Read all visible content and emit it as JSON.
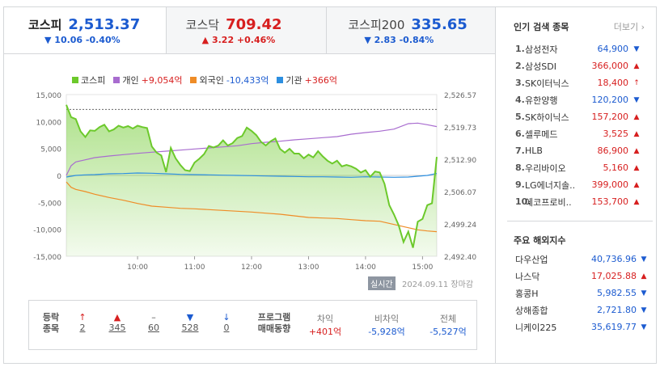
{
  "tabs": [
    {
      "name": "코스피",
      "value": "2,513.37",
      "change": "▼ 10.06 -0.40%",
      "dir": "down"
    },
    {
      "name": "코스닥",
      "value": "709.42",
      "change": "▲ 3.22 +0.46%",
      "dir": "up"
    },
    {
      "name": "코스피200",
      "value": "335.65",
      "change": "▼ 2.83 -0.84%",
      "dir": "down"
    }
  ],
  "legend": [
    {
      "name": "코스피",
      "value": "",
      "color": "#6cc92b"
    },
    {
      "name": "개인",
      "value": "+9,054억",
      "color": "#a86ccf",
      "dir": "up"
    },
    {
      "name": "외국인",
      "value": "-10,433억",
      "color": "#ef8c27",
      "dir": "down"
    },
    {
      "name": "기관",
      "value": "+366억",
      "color": "#2d8fe0",
      "dir": "up"
    }
  ],
  "chart_data": {
    "type": "line",
    "x_ticks": [
      "10:00",
      "11:00",
      "12:00",
      "13:00",
      "14:00",
      "15:00"
    ],
    "left_ticks": [
      "15,000",
      "10,000",
      "5,000",
      "0",
      "-5,000",
      "-10,000",
      "-15,000"
    ],
    "right_ticks": [
      "2,526.57",
      "2,519.73",
      "2,512.90",
      "2,506.07",
      "2,499.24",
      "2,492.40"
    ],
    "left_range": [
      -15000,
      15000
    ],
    "right_range": [
      2492.4,
      2526.57
    ],
    "x_range": [
      0,
      390
    ],
    "prev_close": 2523.43,
    "series": [
      {
        "name": "코스피",
        "axis": "right",
        "color": "#6cc92b",
        "points": [
          [
            0,
            2524.4
          ],
          [
            5,
            2521.8
          ],
          [
            10,
            2521.4
          ],
          [
            15,
            2518.8
          ],
          [
            20,
            2517.6
          ],
          [
            25,
            2519.0
          ],
          [
            30,
            2518.9
          ],
          [
            35,
            2519.7
          ],
          [
            40,
            2520.2
          ],
          [
            45,
            2518.8
          ],
          [
            50,
            2519.2
          ],
          [
            55,
            2520.0
          ],
          [
            60,
            2519.6
          ],
          [
            65,
            2519.9
          ],
          [
            70,
            2519.4
          ],
          [
            75,
            2520.0
          ],
          [
            80,
            2519.7
          ],
          [
            85,
            2519.5
          ],
          [
            90,
            2515.6
          ],
          [
            95,
            2514.3
          ],
          [
            100,
            2513.7
          ],
          [
            105,
            2510.2
          ],
          [
            110,
            2515.3
          ],
          [
            115,
            2513.1
          ],
          [
            120,
            2511.7
          ],
          [
            125,
            2510.6
          ],
          [
            130,
            2510.4
          ],
          [
            135,
            2512.2
          ],
          [
            140,
            2513.0
          ],
          [
            145,
            2514.0
          ],
          [
            150,
            2515.7
          ],
          [
            155,
            2515.4
          ],
          [
            160,
            2515.8
          ],
          [
            165,
            2516.9
          ],
          [
            170,
            2515.8
          ],
          [
            175,
            2516.3
          ],
          [
            180,
            2517.4
          ],
          [
            185,
            2517.8
          ],
          [
            190,
            2519.6
          ],
          [
            195,
            2518.9
          ],
          [
            200,
            2518.0
          ],
          [
            205,
            2516.6
          ],
          [
            210,
            2515.8
          ],
          [
            215,
            2516.7
          ],
          [
            220,
            2517.3
          ],
          [
            225,
            2515.1
          ],
          [
            230,
            2514.3
          ],
          [
            235,
            2515.1
          ],
          [
            240,
            2514.1
          ],
          [
            245,
            2514.1
          ],
          [
            250,
            2513.1
          ],
          [
            255,
            2513.9
          ],
          [
            260,
            2513.3
          ],
          [
            265,
            2514.6
          ],
          [
            270,
            2513.5
          ],
          [
            275,
            2512.6
          ],
          [
            280,
            2512.0
          ],
          [
            285,
            2512.6
          ],
          [
            290,
            2511.4
          ],
          [
            295,
            2511.7
          ],
          [
            300,
            2511.4
          ],
          [
            305,
            2510.9
          ],
          [
            310,
            2510.1
          ],
          [
            315,
            2510.6
          ],
          [
            320,
            2509.2
          ],
          [
            325,
            2510.3
          ],
          [
            330,
            2510.1
          ],
          [
            335,
            2507.7
          ],
          [
            340,
            2503.2
          ],
          [
            345,
            2501.2
          ],
          [
            350,
            2498.9
          ],
          [
            355,
            2495.4
          ],
          [
            360,
            2497.6
          ],
          [
            365,
            2494.2
          ],
          [
            370,
            2499.7
          ],
          [
            375,
            2500.3
          ],
          [
            380,
            2503.2
          ],
          [
            385,
            2503.6
          ],
          [
            390,
            2513.4
          ]
        ]
      },
      {
        "name": "개인",
        "axis": "left",
        "color": "#a86ccf",
        "points": [
          [
            0,
            0
          ],
          [
            5,
            1800
          ],
          [
            10,
            2500
          ],
          [
            20,
            2900
          ],
          [
            30,
            3300
          ],
          [
            45,
            3600
          ],
          [
            60,
            3850
          ],
          [
            75,
            4100
          ],
          [
            90,
            4300
          ],
          [
            105,
            4500
          ],
          [
            120,
            4700
          ],
          [
            135,
            4900
          ],
          [
            150,
            5100
          ],
          [
            165,
            5300
          ],
          [
            180,
            5500
          ],
          [
            195,
            5900
          ],
          [
            210,
            6150
          ],
          [
            225,
            6350
          ],
          [
            240,
            6600
          ],
          [
            255,
            6800
          ],
          [
            270,
            7000
          ],
          [
            285,
            7200
          ],
          [
            300,
            7650
          ],
          [
            315,
            7950
          ],
          [
            330,
            8200
          ],
          [
            345,
            8600
          ],
          [
            360,
            9600
          ],
          [
            370,
            9700
          ],
          [
            380,
            9400
          ],
          [
            390,
            9054
          ]
        ]
      },
      {
        "name": "외국인",
        "axis": "left",
        "color": "#ef8c27",
        "points": [
          [
            0,
            -1200
          ],
          [
            5,
            -2200
          ],
          [
            10,
            -2600
          ],
          [
            20,
            -3000
          ],
          [
            30,
            -3500
          ],
          [
            45,
            -4100
          ],
          [
            60,
            -4600
          ],
          [
            75,
            -5200
          ],
          [
            90,
            -5700
          ],
          [
            105,
            -5900
          ],
          [
            120,
            -6100
          ],
          [
            135,
            -6200
          ],
          [
            150,
            -6350
          ],
          [
            165,
            -6500
          ],
          [
            180,
            -6650
          ],
          [
            195,
            -6800
          ],
          [
            210,
            -7000
          ],
          [
            225,
            -7200
          ],
          [
            240,
            -7500
          ],
          [
            255,
            -7800
          ],
          [
            270,
            -7900
          ],
          [
            285,
            -8000
          ],
          [
            300,
            -8200
          ],
          [
            315,
            -8400
          ],
          [
            330,
            -8500
          ],
          [
            345,
            -9100
          ],
          [
            360,
            -9700
          ],
          [
            370,
            -10100
          ],
          [
            380,
            -10300
          ],
          [
            390,
            -10433
          ]
        ]
      },
      {
        "name": "기관",
        "axis": "left",
        "color": "#2d8fe0",
        "points": [
          [
            0,
            -300
          ],
          [
            10,
            0
          ],
          [
            20,
            100
          ],
          [
            30,
            150
          ],
          [
            45,
            300
          ],
          [
            60,
            350
          ],
          [
            75,
            450
          ],
          [
            90,
            400
          ],
          [
            105,
            300
          ],
          [
            120,
            200
          ],
          [
            135,
            150
          ],
          [
            150,
            100
          ],
          [
            165,
            50
          ],
          [
            180,
            0
          ],
          [
            195,
            -50
          ],
          [
            210,
            -100
          ],
          [
            225,
            -150
          ],
          [
            240,
            -200
          ],
          [
            255,
            -250
          ],
          [
            270,
            -250
          ],
          [
            285,
            -300
          ],
          [
            300,
            -350
          ],
          [
            315,
            -250
          ],
          [
            330,
            -300
          ],
          [
            345,
            -350
          ],
          [
            360,
            -300
          ],
          [
            370,
            -150
          ],
          [
            380,
            0
          ],
          [
            390,
            366
          ]
        ]
      }
    ]
  },
  "footer": {
    "realtime": "실시간",
    "timestamp": "2024.09.11 장마감"
  },
  "breadth": {
    "title1": "등락",
    "title2": "종목",
    "items": [
      {
        "icon": "↑",
        "value": "2",
        "dir": "up"
      },
      {
        "icon": "▲",
        "value": "345",
        "dir": "up"
      },
      {
        "icon": "–",
        "value": "60",
        "dir": "flat"
      },
      {
        "icon": "▼",
        "value": "528",
        "dir": "down"
      },
      {
        "icon": "↓",
        "value": "0",
        "dir": "down"
      }
    ]
  },
  "program": {
    "title1": "프로그램",
    "title2": "매매동향",
    "items": [
      {
        "label": "차익",
        "value": "+401억",
        "dir": "up"
      },
      {
        "label": "비차익",
        "value": "-5,928억",
        "dir": "down"
      },
      {
        "label": "전체",
        "value": "-5,527억",
        "dir": "down"
      }
    ]
  },
  "popular": {
    "title": "인기 검색 종목",
    "more": "더보기",
    "items": [
      {
        "rank": "1.",
        "name": "삼성전자",
        "price": "64,900",
        "arrow": "▼",
        "dir": "down"
      },
      {
        "rank": "2.",
        "name": "삼성SDI",
        "price": "366,000",
        "arrow": "▲",
        "dir": "up"
      },
      {
        "rank": "3.",
        "name": "SK이터닉스",
        "price": "18,400",
        "arrow": "↑",
        "dir": "up"
      },
      {
        "rank": "4.",
        "name": "유한양행",
        "price": "120,200",
        "arrow": "▼",
        "dir": "down"
      },
      {
        "rank": "5.",
        "name": "SK하이닉스",
        "price": "157,200",
        "arrow": "▲",
        "dir": "up"
      },
      {
        "rank": "6.",
        "name": "셀루메드",
        "price": "3,525",
        "arrow": "▲",
        "dir": "up"
      },
      {
        "rank": "7.",
        "name": "HLB",
        "price": "86,900",
        "arrow": "▲",
        "dir": "up"
      },
      {
        "rank": "8.",
        "name": "우리바이오",
        "price": "5,160",
        "arrow": "▲",
        "dir": "up"
      },
      {
        "rank": "9.",
        "name": "LG에너지솔..",
        "price": "399,000",
        "arrow": "▲",
        "dir": "up"
      },
      {
        "rank": "10.",
        "name": "에코프로비..",
        "price": "153,700",
        "arrow": "▲",
        "dir": "up"
      }
    ]
  },
  "international": {
    "title": "주요 해외지수",
    "items": [
      {
        "name": "다우산업",
        "value": "40,736.96",
        "arrow": "▼",
        "dir": "down"
      },
      {
        "name": "나스닥",
        "value": "17,025.88",
        "arrow": "▲",
        "dir": "up"
      },
      {
        "name": "홍콩H",
        "value": "5,982.55",
        "arrow": "▼",
        "dir": "down"
      },
      {
        "name": "상해종합",
        "value": "2,721.80",
        "arrow": "▼",
        "dir": "down"
      },
      {
        "name": "니케이225",
        "value": "35,619.77",
        "arrow": "▼",
        "dir": "down"
      }
    ]
  }
}
